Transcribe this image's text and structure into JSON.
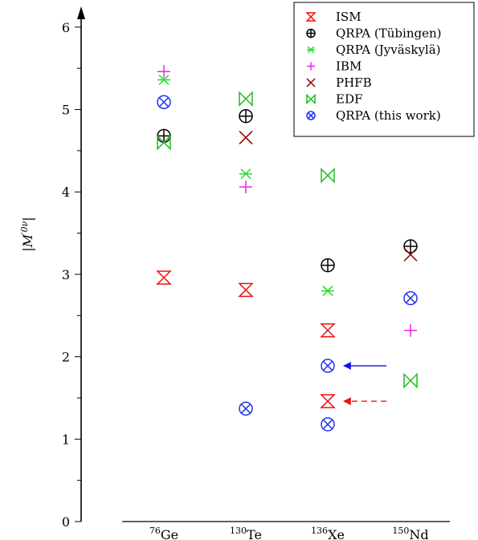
{
  "chart_data": {
    "type": "scatter",
    "ylabel": "|M'^0ν|",
    "ylim": [
      0,
      6.2
    ],
    "yticks": [
      "0",
      "1",
      "2",
      "3",
      "4",
      "5",
      "6"
    ],
    "grid": false,
    "legend_position": "top-right",
    "categories": [
      {
        "id": "ge76",
        "mass": "76",
        "symbol": "Ge"
      },
      {
        "id": "te130",
        "mass": "130",
        "symbol": "Te"
      },
      {
        "id": "xe136",
        "mass": "136",
        "symbol": "Xe"
      },
      {
        "id": "nd150",
        "mass": "150",
        "symbol": "Nd"
      }
    ],
    "series": [
      {
        "name": "ISM",
        "marker": "bowtie-v",
        "color": "#ee1111",
        "values": [
          2.96,
          2.81,
          2.32,
          null
        ],
        "extra": [
          {
            "x": "xe136",
            "y": 1.46
          }
        ]
      },
      {
        "name": "QRPA (Tübingen)",
        "marker": "circle-plus",
        "color": "#000000",
        "values": [
          4.68,
          4.92,
          3.11,
          3.34
        ]
      },
      {
        "name": "QRPA (Jyväskylä)",
        "marker": "asterisk",
        "color": "#22dd22",
        "values": [
          5.36,
          4.22,
          2.8,
          null
        ]
      },
      {
        "name": "IBM",
        "marker": "plus",
        "color": "#ee22ee",
        "values": [
          5.46,
          4.06,
          null,
          2.32
        ]
      },
      {
        "name": "PHFB",
        "marker": "x",
        "color": "#8b0000",
        "values": [
          null,
          4.66,
          null,
          3.24
        ]
      },
      {
        "name": "EDF",
        "marker": "bowtie-h",
        "color": "#22bb22",
        "values": [
          4.6,
          5.13,
          4.2,
          1.71
        ]
      },
      {
        "name": "QRPA (this work)",
        "marker": "circle-x",
        "color": "#2233ee",
        "values": [
          5.09,
          1.37,
          1.89,
          2.71
        ],
        "extra": [
          {
            "x": "xe136",
            "y": 1.18
          }
        ]
      }
    ],
    "annotations": [
      {
        "type": "arrow",
        "style": "solid",
        "color": "#1111ee",
        "x": "xe136",
        "y": 1.89
      },
      {
        "type": "arrow",
        "style": "dashed",
        "color": "#ee1111",
        "x": "xe136",
        "y": 1.46
      }
    ]
  }
}
